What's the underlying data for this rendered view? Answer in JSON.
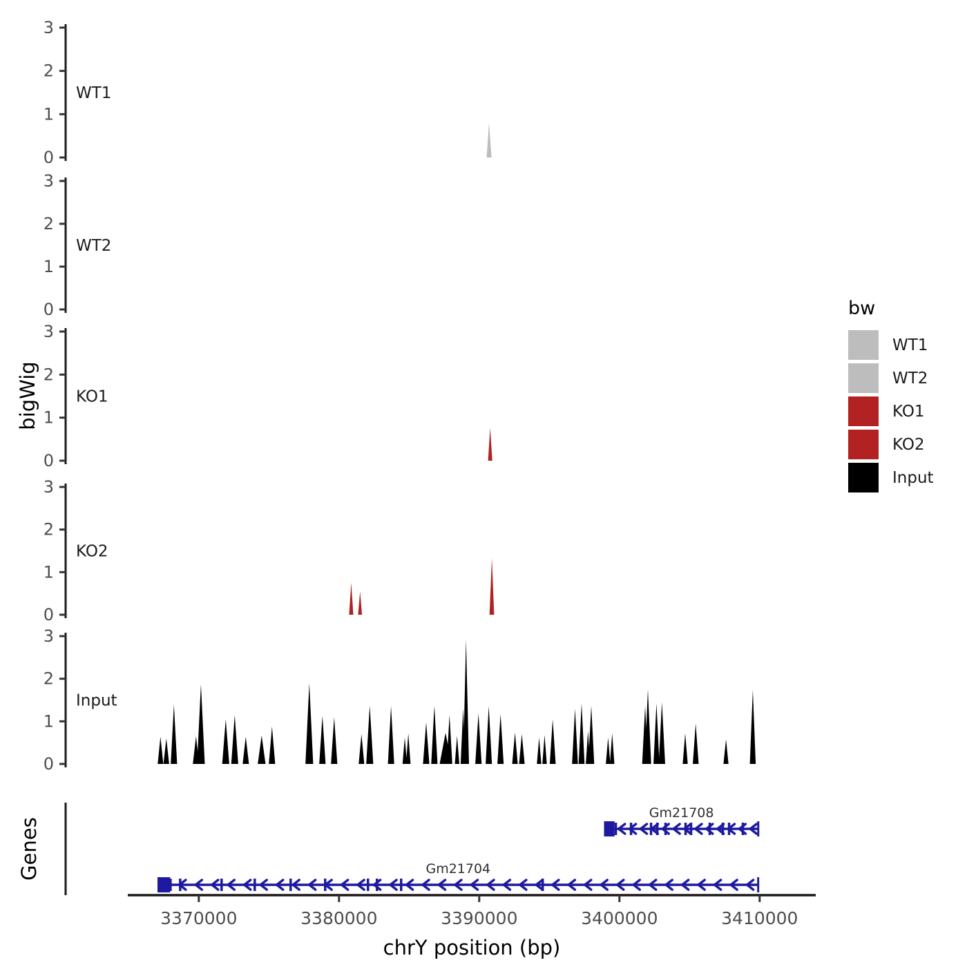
{
  "axes": {
    "y_title": "bigWig",
    "genes_title": "Genes",
    "x_title": "chrY position (bp)"
  },
  "legend": {
    "title": "bw",
    "entries": [
      {
        "label": "WT1",
        "color": "#bdbdbd"
      },
      {
        "label": "WT2",
        "color": "#bdbdbd"
      },
      {
        "label": "KO1",
        "color": "#b22222"
      },
      {
        "label": "KO2",
        "color": "#b22222"
      },
      {
        "label": "Input",
        "color": "#000000"
      }
    ]
  },
  "chart_data": {
    "type": "area",
    "title": "",
    "xlabel": "chrY position (bp)",
    "ylabel": "bigWig",
    "x_range_bp": [
      3360500,
      3414000
    ],
    "x_tick_values": [
      3370000,
      3380000,
      3390000,
      3400000,
      3410000
    ],
    "y_range": [
      0,
      3
    ],
    "y_tick_values": [
      0,
      1,
      2,
      3
    ],
    "colors": {
      "wt": "#bdbdbd",
      "ko": "#b22222",
      "input": "#000000",
      "gene": "#1e1aa0",
      "axis": "#1a1a1a",
      "tick_label": "#4d4d4d"
    },
    "tracks": [
      {
        "name": "WT1",
        "color": "#bdbdbd",
        "peaks": [
          [
            3390700,
            0.8,
            350
          ]
        ]
      },
      {
        "name": "WT2",
        "color": "#bdbdbd",
        "peaks": []
      },
      {
        "name": "KO1",
        "color": "#b22222",
        "peaks": [
          [
            3390780,
            0.77,
            300
          ]
        ]
      },
      {
        "name": "KO2",
        "color": "#b22222",
        "peaks": [
          [
            3380870,
            0.75,
            300
          ],
          [
            3381500,
            0.55,
            280
          ],
          [
            3390900,
            1.33,
            330
          ]
        ]
      },
      {
        "name": "Input",
        "color": "#000000",
        "peaks": [
          [
            3367265,
            0.64,
            400
          ],
          [
            3367683,
            0.6,
            400
          ],
          [
            3368225,
            1.39,
            450
          ],
          [
            3369800,
            0.65,
            450
          ],
          [
            3370150,
            1.87,
            550
          ],
          [
            3371920,
            1.05,
            500
          ],
          [
            3372562,
            1.15,
            500
          ],
          [
            3373350,
            0.64,
            450
          ],
          [
            3374482,
            0.67,
            550
          ],
          [
            3375220,
            0.88,
            450
          ],
          [
            3377880,
            1.9,
            550
          ],
          [
            3378816,
            1.13,
            450
          ],
          [
            3379653,
            1.1,
            450
          ],
          [
            3381600,
            0.7,
            400
          ],
          [
            3382190,
            1.37,
            500
          ],
          [
            3383710,
            1.36,
            450
          ],
          [
            3384690,
            0.62,
            320
          ],
          [
            3384940,
            0.72,
            320
          ],
          [
            3386215,
            0.98,
            450
          ],
          [
            3386800,
            1.37,
            450
          ],
          [
            3387600,
            0.73,
            850
          ],
          [
            3387880,
            1.15,
            400
          ],
          [
            3388420,
            0.66,
            320
          ],
          [
            3388850,
            1.3,
            350
          ],
          [
            3389060,
            2.92,
            420
          ],
          [
            3389945,
            1.19,
            450
          ],
          [
            3390680,
            1.36,
            450
          ],
          [
            3391520,
            1.17,
            450
          ],
          [
            3392550,
            0.74,
            400
          ],
          [
            3393040,
            0.7,
            400
          ],
          [
            3394270,
            0.62,
            320
          ],
          [
            3394660,
            0.68,
            320
          ],
          [
            3395240,
            1.05,
            420
          ],
          [
            3396830,
            1.3,
            420
          ],
          [
            3397300,
            1.42,
            420
          ],
          [
            3397760,
            0.77,
            320
          ],
          [
            3397990,
            1.37,
            420
          ],
          [
            3399190,
            0.62,
            320
          ],
          [
            3399480,
            0.72,
            320
          ],
          [
            3401830,
            1.36,
            420
          ],
          [
            3402030,
            1.75,
            460
          ],
          [
            3402640,
            1.42,
            420
          ],
          [
            3403030,
            1.45,
            460
          ],
          [
            3404690,
            0.72,
            360
          ],
          [
            3405440,
            0.95,
            420
          ],
          [
            3407600,
            0.58,
            360
          ],
          [
            3409510,
            1.74,
            420
          ]
        ]
      }
    ],
    "genes": [
      {
        "name": "Gm21708",
        "start": 3398950,
        "end": 3409900,
        "strand": "-",
        "exon_rect_end": 3399700,
        "exon_ticks": [
          3399742,
          3400826,
          3402254,
          3402697,
          3403288,
          3404716,
          3405110,
          3406440,
          3407376,
          3407819,
          3408804
        ],
        "arrow_count": 13
      },
      {
        "name": "Gm21704",
        "start": 3367100,
        "end": 3409895,
        "strand": "-",
        "exon_rect_end": 3368000,
        "exon_ticks": [
          3367981,
          3368670,
          3371625,
          3373989,
          3376550,
          3379013,
          3382066,
          3382707,
          3384430,
          3394527
        ],
        "arrow_count": 36
      }
    ]
  }
}
